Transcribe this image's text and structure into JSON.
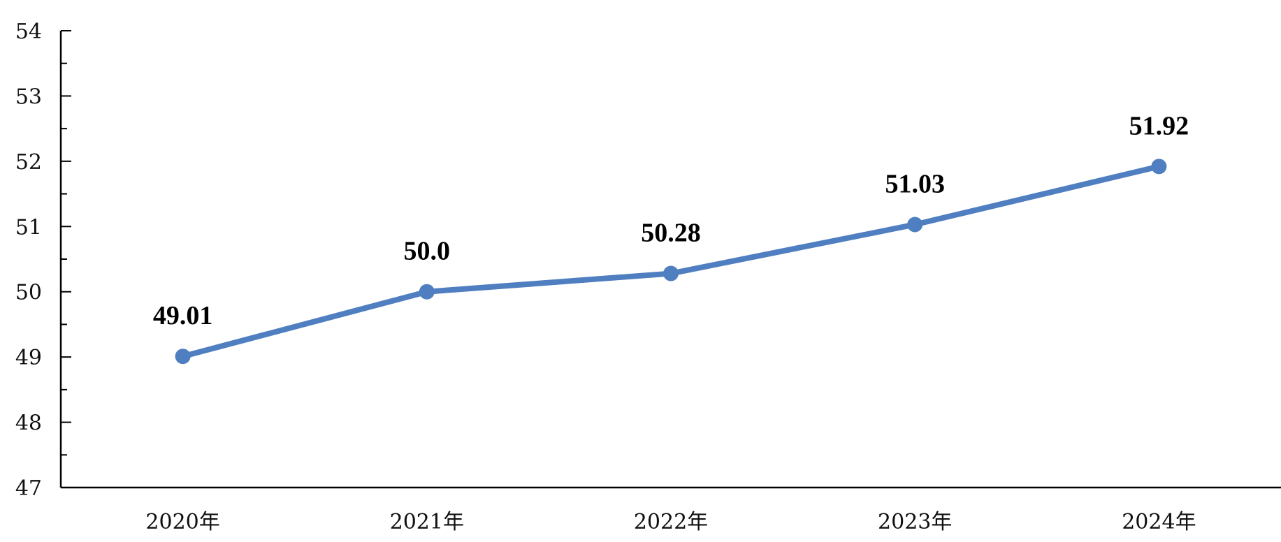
{
  "chart_data": {
    "type": "line",
    "title": "",
    "xlabel": "",
    "ylabel": "",
    "categories": [
      "2020年",
      "2021年",
      "2022年",
      "2023年",
      "2024年"
    ],
    "series": [
      {
        "values": [
          49.01,
          50.0,
          50.28,
          51.03,
          51.92
        ],
        "labels": [
          "49.01",
          "50.0",
          "50.28",
          "51.03",
          "51.92"
        ],
        "color": "#4F7FC0",
        "marker": "circle"
      }
    ],
    "ylim": [
      47,
      54
    ],
    "yticks": [
      "47",
      "48",
      "49",
      "50",
      "51",
      "52",
      "53",
      "54"
    ],
    "minor_ticks": true,
    "grid": false,
    "legend": "none"
  }
}
